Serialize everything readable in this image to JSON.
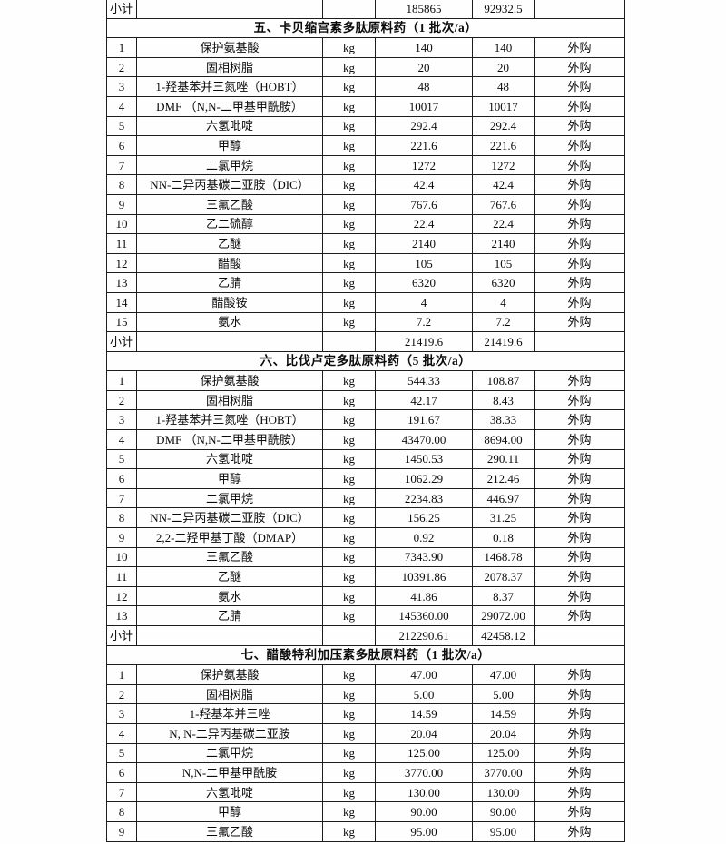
{
  "table": {
    "subtotal_label": "小计",
    "leading_subtotal": {
      "qty1": "185865",
      "qty2": "92932.5"
    },
    "sections": [
      {
        "title": "五、卡贝缩宫素多肽原料药（1 批次/a）",
        "rows": [
          {
            "no": "1",
            "name": "保护氨基酸",
            "unit": "kg",
            "qty1": "140",
            "qty2": "140",
            "source": "外购"
          },
          {
            "no": "2",
            "name": "固相树脂",
            "unit": "kg",
            "qty1": "20",
            "qty2": "20",
            "source": "外购"
          },
          {
            "no": "3",
            "name": "1-羟基苯并三氮唑（HOBT）",
            "unit": "kg",
            "qty1": "48",
            "qty2": "48",
            "source": "外购"
          },
          {
            "no": "4",
            "name": "DMF （N,N-二甲基甲酰胺）",
            "unit": "kg",
            "qty1": "10017",
            "qty2": "10017",
            "source": "外购"
          },
          {
            "no": "5",
            "name": "六氢吡啶",
            "unit": "kg",
            "qty1": "292.4",
            "qty2": "292.4",
            "source": "外购"
          },
          {
            "no": "6",
            "name": "甲醇",
            "unit": "kg",
            "qty1": "221.6",
            "qty2": "221.6",
            "source": "外购"
          },
          {
            "no": "7",
            "name": "二氯甲烷",
            "unit": "kg",
            "qty1": "1272",
            "qty2": "1272",
            "source": "外购"
          },
          {
            "no": "8",
            "name": "NN-二异丙基碳二亚胺（DIC）",
            "unit": "kg",
            "qty1": "42.4",
            "qty2": "42.4",
            "source": "外购"
          },
          {
            "no": "9",
            "name": "三氟乙酸",
            "unit": "kg",
            "qty1": "767.6",
            "qty2": "767.6",
            "source": "外购"
          },
          {
            "no": "10",
            "name": "乙二硫醇",
            "unit": "kg",
            "qty1": "22.4",
            "qty2": "22.4",
            "source": "外购"
          },
          {
            "no": "11",
            "name": "乙醚",
            "unit": "kg",
            "qty1": "2140",
            "qty2": "2140",
            "source": "外购"
          },
          {
            "no": "12",
            "name": "醋酸",
            "unit": "kg",
            "qty1": "105",
            "qty2": "105",
            "source": "外购"
          },
          {
            "no": "13",
            "name": "乙腈",
            "unit": "kg",
            "qty1": "6320",
            "qty2": "6320",
            "source": "外购"
          },
          {
            "no": "14",
            "name": "醋酸铵",
            "unit": "kg",
            "qty1": "4",
            "qty2": "4",
            "source": "外购"
          },
          {
            "no": "15",
            "name": "氨水",
            "unit": "kg",
            "qty1": "7.2",
            "qty2": "7.2",
            "source": "外购"
          }
        ],
        "subtotal": {
          "qty1": "21419.6",
          "qty2": "21419.6"
        }
      },
      {
        "title": "六、比伐卢定多肽原料药（5 批次/a）",
        "rows": [
          {
            "no": "1",
            "name": "保护氨基酸",
            "unit": "kg",
            "qty1": "544.33",
            "qty2": "108.87",
            "source": "外购"
          },
          {
            "no": "2",
            "name": "固相树脂",
            "unit": "kg",
            "qty1": "42.17",
            "qty2": "8.43",
            "source": "外购"
          },
          {
            "no": "3",
            "name": "1-羟基苯并三氮唑（HOBT）",
            "unit": "kg",
            "qty1": "191.67",
            "qty2": "38.33",
            "source": "外购"
          },
          {
            "no": "4",
            "name": "DMF （N,N-二甲基甲酰胺）",
            "unit": "kg",
            "qty1": "43470.00",
            "qty2": "8694.00",
            "source": "外购"
          },
          {
            "no": "5",
            "name": "六氢吡啶",
            "unit": "kg",
            "qty1": "1450.53",
            "qty2": "290.11",
            "source": "外购"
          },
          {
            "no": "6",
            "name": "甲醇",
            "unit": "kg",
            "qty1": "1062.29",
            "qty2": "212.46",
            "source": "外购"
          },
          {
            "no": "7",
            "name": "二氯甲烷",
            "unit": "kg",
            "qty1": "2234.83",
            "qty2": "446.97",
            "source": "外购"
          },
          {
            "no": "8",
            "name": "NN-二异丙基碳二亚胺（DIC）",
            "unit": "kg",
            "qty1": "156.25",
            "qty2": "31.25",
            "source": "外购"
          },
          {
            "no": "9",
            "name": "2,2-二羟甲基丁酸（DMAP）",
            "unit": "kg",
            "qty1": "0.92",
            "qty2": "0.18",
            "source": "外购"
          },
          {
            "no": "10",
            "name": "三氟乙酸",
            "unit": "kg",
            "qty1": "7343.90",
            "qty2": "1468.78",
            "source": "外购"
          },
          {
            "no": "11",
            "name": "乙醚",
            "unit": "kg",
            "qty1": "10391.86",
            "qty2": "2078.37",
            "source": "外购"
          },
          {
            "no": "12",
            "name": "氨水",
            "unit": "kg",
            "qty1": "41.86",
            "qty2": "8.37",
            "source": "外购"
          },
          {
            "no": "13",
            "name": "乙腈",
            "unit": "kg",
            "qty1": "145360.00",
            "qty2": "29072.00",
            "source": "外购"
          }
        ],
        "subtotal": {
          "qty1": "212290.61",
          "qty2": "42458.12"
        }
      },
      {
        "title": "七、醋酸特利加压素多肽原料药（1 批次/a）",
        "rows": [
          {
            "no": "1",
            "name": "保护氨基酸",
            "unit": "kg",
            "qty1": "47.00",
            "qty2": "47.00",
            "source": "外购"
          },
          {
            "no": "2",
            "name": "固相树脂",
            "unit": "kg",
            "qty1": "5.00",
            "qty2": "5.00",
            "source": "外购"
          },
          {
            "no": "3",
            "name": "1-羟基苯并三唑",
            "unit": "kg",
            "qty1": "14.59",
            "qty2": "14.59",
            "source": "外购"
          },
          {
            "no": "4",
            "name": "N, N-二异丙基碳二亚胺",
            "unit": "kg",
            "qty1": "20.04",
            "qty2": "20.04",
            "source": "外购"
          },
          {
            "no": "5",
            "name": "二氯甲烷",
            "unit": "kg",
            "qty1": "125.00",
            "qty2": "125.00",
            "source": "外购"
          },
          {
            "no": "6",
            "name": "N,N-二甲基甲酰胺",
            "unit": "kg",
            "qty1": "3770.00",
            "qty2": "3770.00",
            "source": "外购"
          },
          {
            "no": "7",
            "name": "六氢吡啶",
            "unit": "kg",
            "qty1": "130.00",
            "qty2": "130.00",
            "source": "外购"
          },
          {
            "no": "8",
            "name": "甲醇",
            "unit": "kg",
            "qty1": "90.00",
            "qty2": "90.00",
            "source": "外购"
          },
          {
            "no": "9",
            "name": "三氟乙酸",
            "unit": "kg",
            "qty1": "95.00",
            "qty2": "95.00",
            "source": "外购"
          }
        ],
        "subtotal": null
      }
    ]
  }
}
